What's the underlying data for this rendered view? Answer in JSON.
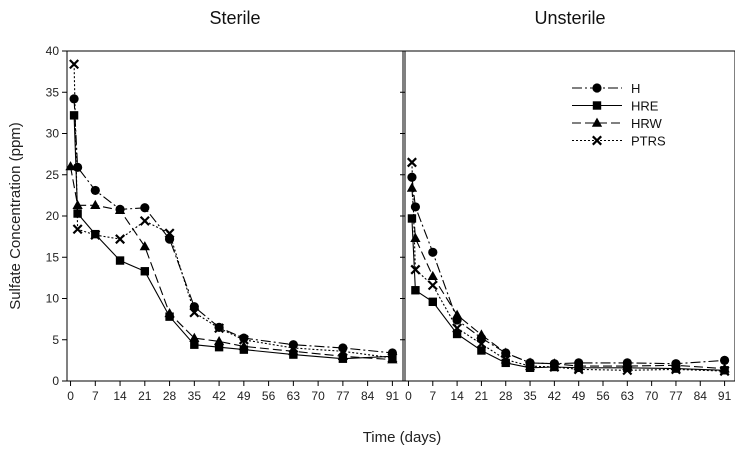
{
  "chart_data": {
    "type": "line",
    "xlabel": "Time (days)",
    "ylabel": "Sulfate Concentration (ppm)",
    "ylim": [
      0,
      40
    ],
    "yticks": [
      0,
      5,
      10,
      15,
      20,
      25,
      30,
      35,
      40
    ],
    "xticks": [
      0,
      7,
      14,
      21,
      28,
      35,
      42,
      49,
      56,
      63,
      70,
      77,
      84,
      91
    ],
    "xlim": [
      -1,
      94
    ],
    "legend_position": "top-right",
    "series_styles": [
      {
        "name": "H",
        "dash": "10,3,2,3",
        "marker": "circle"
      },
      {
        "name": "HRE",
        "dash": "",
        "marker": "square"
      },
      {
        "name": "HRW",
        "dash": "9,4",
        "marker": "triangle"
      },
      {
        "name": "PTRS",
        "dash": "2,2",
        "marker": "x"
      }
    ],
    "panels": [
      {
        "title": "Sterile",
        "series": [
          {
            "name": "H",
            "x": [
              1,
              2,
              7,
              14,
              21,
              28,
              35,
              42,
              49,
              63,
              77,
              91
            ],
            "y": [
              34.2,
              25.9,
              23.1,
              20.8,
              21.0,
              17.2,
              9.0,
              6.5,
              5.2,
              4.4,
              4.0,
              3.4
            ]
          },
          {
            "name": "HRE",
            "x": [
              1,
              2,
              7,
              14,
              21,
              28,
              35,
              42,
              49,
              63,
              77,
              91
            ],
            "y": [
              32.2,
              20.3,
              17.8,
              14.6,
              13.3,
              7.8,
              4.4,
              4.1,
              3.8,
              3.2,
              2.7,
              3.0
            ]
          },
          {
            "name": "HRW",
            "x": [
              0,
              2,
              7,
              14,
              21,
              28,
              35,
              42,
              49,
              63,
              77,
              91
            ],
            "y": [
              26.0,
              21.3,
              21.3,
              20.7,
              16.3,
              8.2,
              5.2,
              4.8,
              4.2,
              3.6,
              3.0,
              2.6
            ]
          },
          {
            "name": "PTRS",
            "x": [
              1,
              2,
              7,
              14,
              21,
              28,
              35,
              42,
              49,
              63,
              77,
              91
            ],
            "y": [
              38.4,
              18.4,
              17.7,
              17.2,
              19.4,
              17.9,
              8.3,
              6.4,
              5.0,
              4.0,
              3.6,
              2.8
            ]
          }
        ]
      },
      {
        "title": "Unsterile",
        "series": [
          {
            "name": "H",
            "x": [
              1,
              2,
              7,
              14,
              21,
              28,
              35,
              42,
              49,
              63,
              77,
              91
            ],
            "y": [
              24.7,
              21.1,
              15.6,
              7.4,
              5.2,
              3.4,
              2.2,
              2.1,
              2.2,
              2.2,
              2.1,
              2.5
            ]
          },
          {
            "name": "HRE",
            "x": [
              1,
              2,
              7,
              14,
              21,
              28,
              35,
              42,
              49,
              63,
              77,
              91
            ],
            "y": [
              19.7,
              11.0,
              9.6,
              5.7,
              3.7,
              2.2,
              1.6,
              1.7,
              1.6,
              1.6,
              1.5,
              1.3
            ]
          },
          {
            "name": "HRW",
            "x": [
              1,
              2,
              7,
              14,
              21,
              28,
              35,
              42,
              49,
              63,
              77,
              91
            ],
            "y": [
              23.4,
              17.3,
              12.7,
              8.0,
              5.6,
              3.4,
              2.2,
              2.1,
              1.8,
              1.8,
              1.9,
              1.5
            ]
          },
          {
            "name": "PTRS",
            "x": [
              1,
              2,
              7,
              14,
              21,
              28,
              35,
              42,
              49,
              63,
              77,
              91
            ],
            "y": [
              26.5,
              13.5,
              11.6,
              6.4,
              4.5,
              2.6,
              1.8,
              1.7,
              1.4,
              1.3,
              1.4,
              1.2
            ]
          }
        ]
      }
    ]
  }
}
